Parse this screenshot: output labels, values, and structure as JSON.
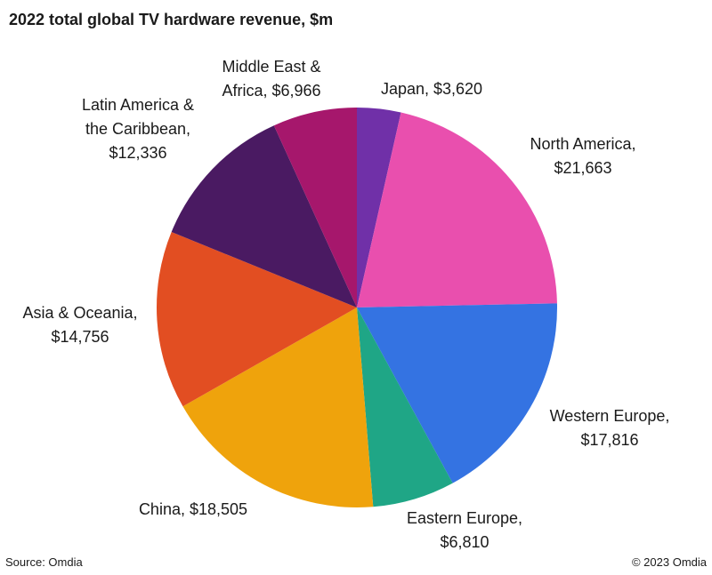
{
  "title": "2022 total global TV hardware revenue, $m",
  "source": "Source: Omdia",
  "copyright": "© 2023 Omdia",
  "chart_data": {
    "type": "pie",
    "title": "2022 total global TV hardware revenue, $m",
    "start_angle": "12 o'clock",
    "direction": "clockwise",
    "slices": [
      {
        "name": "Japan",
        "value": 3620,
        "color": "#7030a8",
        "label_lines": [
          "Japan, $3,620"
        ]
      },
      {
        "name": "North America",
        "value": 21663,
        "color": "#e94fae",
        "label_lines": [
          "North America,",
          "$21,663"
        ]
      },
      {
        "name": "Western Europe",
        "value": 17816,
        "color": "#3473e2",
        "label_lines": [
          "Western Europe,",
          "$17,816"
        ]
      },
      {
        "name": "Eastern Europe",
        "value": 6810,
        "color": "#1fa686",
        "label_lines": [
          "Eastern Europe,",
          "$6,810"
        ]
      },
      {
        "name": "China",
        "value": 18505,
        "color": "#efa30c",
        "label_lines": [
          "China, $18,505"
        ]
      },
      {
        "name": "Asia & Oceania",
        "value": 14756,
        "color": "#e24e22",
        "label_lines": [
          "Asia & Oceania,",
          "$14,756"
        ]
      },
      {
        "name": "Latin America & the Caribbean",
        "value": 12336,
        "color": "#4a1a62",
        "label_lines": [
          "Latin America &",
          "the Caribbean,",
          "$12,336"
        ]
      },
      {
        "name": "Middle East & Africa",
        "value": 6966,
        "color": "#a6176c",
        "label_lines": [
          "Middle East &",
          "Africa, $6,966"
        ]
      }
    ]
  }
}
